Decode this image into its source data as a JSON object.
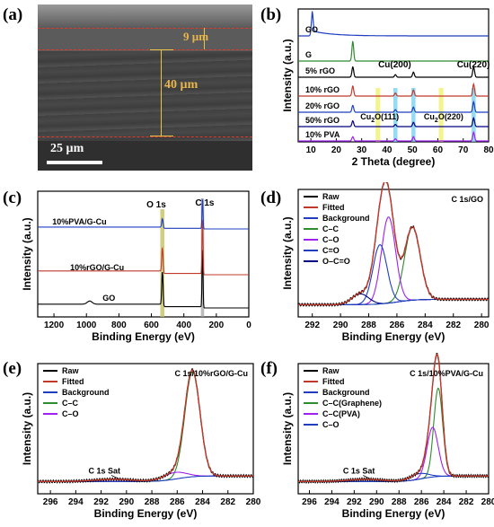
{
  "panels": {
    "a": {
      "label": "(a)",
      "thickness_top": "9 µm",
      "thickness_film": "40 µm",
      "scale_bar": "25 µm"
    },
    "b": {
      "label": "(b)"
    },
    "c": {
      "label": "(c)"
    },
    "d": {
      "label": "(d)"
    },
    "e": {
      "label": "(e)"
    },
    "f": {
      "label": "(f)"
    }
  },
  "colors": {
    "raw": "#000000",
    "fitted": "#c0392b",
    "background": "#1f3fbf",
    "cc": "#2e8b2e",
    "co": "#a020f0",
    "ceo": "#1f3fbf",
    "ocoo": "#000080",
    "xrd_red": "#c0392b",
    "xrd_green": "#2e8b2e",
    "xrd_blue": "#1f3fbf",
    "xrd_navy": "#000080",
    "xrd_purple": "#a020f0",
    "hl_yellow": "#f0f060",
    "hl_cyan": "#66ccee"
  },
  "chart_data": [
    {
      "id": "b",
      "type": "line",
      "xlabel": "2 Theta (degree)",
      "ylabel": "Intensity (a.u.)",
      "xlim": [
        5,
        80
      ],
      "xticks": [
        10,
        20,
        30,
        40,
        50,
        60,
        70,
        80
      ],
      "series": [
        {
          "name": "GO",
          "color": "#1f3fbf",
          "peaks": [
            [
              10.5,
              1.0
            ]
          ]
        },
        {
          "name": "G",
          "color": "#2e8b2e",
          "peaks": [
            [
              26.5,
              1.0
            ]
          ]
        },
        {
          "name": "5% rGO",
          "color": "#000000",
          "peaks": [
            [
              26.5,
              0.6
            ],
            [
              43.3,
              0.15
            ],
            [
              50.4,
              0.3
            ],
            [
              74.1,
              0.6
            ]
          ]
        },
        {
          "name": "10% rGO",
          "color": "#c0392b",
          "peaks": [
            [
              26.5,
              0.5
            ],
            [
              43.3,
              0.15
            ],
            [
              50.4,
              0.3
            ],
            [
              74.1,
              0.6
            ]
          ]
        },
        {
          "name": "20% rGO",
          "color": "#1f3fbf",
          "peaks": [
            [
              26.5,
              0.4
            ],
            [
              43.3,
              0.15
            ],
            [
              50.4,
              0.3
            ],
            [
              74.1,
              0.6
            ]
          ]
        },
        {
          "name": "50% rGO",
          "color": "#000080",
          "peaks": [
            [
              26.5,
              0.4
            ],
            [
              43.3,
              0.15
            ],
            [
              50.4,
              0.3
            ],
            [
              74.1,
              0.6
            ]
          ]
        },
        {
          "name": "10% PVA",
          "color": "#a020f0",
          "peaks": [
            [
              26.5,
              0.3
            ],
            [
              43.3,
              0.15
            ],
            [
              50.4,
              0.3
            ],
            [
              74.1,
              0.6
            ]
          ]
        }
      ],
      "annotations": [
        "Cu(200)",
        "Cu(220)",
        "Cu",
        "2",
        "O(111)",
        "Cu",
        "2",
        "O(220)"
      ]
    },
    {
      "id": "c",
      "type": "line",
      "xlabel": "Binding Energy (eV)",
      "ylabel": "Intensity (a.u.)",
      "xlim": [
        1300,
        0
      ],
      "xticks": [
        1200,
        1000,
        800,
        600,
        400,
        200,
        0
      ],
      "series": [
        {
          "name": "GO",
          "color": "#000000"
        },
        {
          "name": "10%rGO/G-Cu",
          "color": "#c0392b"
        },
        {
          "name": "10%PVA/G-Cu",
          "color": "#1f3fbf"
        }
      ],
      "annotations": [
        "O 1s",
        "C 1s"
      ]
    },
    {
      "id": "d",
      "type": "line",
      "title": "C 1s/GO",
      "xlabel": "Binding Energy (eV)",
      "ylabel": "Intensity (a.u.)",
      "xlim": [
        293,
        279.5
      ],
      "xticks": [
        292,
        290,
        288,
        286,
        284,
        282,
        280
      ],
      "legend": [
        "Raw",
        "Fitted",
        "Background",
        "C–C",
        "C–O",
        "C=O",
        "O–C=O"
      ],
      "components": [
        {
          "name": "C–C",
          "center": 284.9,
          "amp": 0.68,
          "width": 0.55
        },
        {
          "name": "C–O",
          "center": 286.6,
          "amp": 0.8,
          "width": 0.5
        },
        {
          "name": "C=O",
          "center": 287.2,
          "amp": 0.55,
          "width": 0.5
        },
        {
          "name": "O–C=O",
          "center": 288.6,
          "amp": 0.1,
          "width": 0.6
        }
      ]
    },
    {
      "id": "e",
      "type": "line",
      "title": "C 1s/10%rGO/G-Cu",
      "xlabel": "Binding Energy (eV)",
      "ylabel": "Intensity (a.u.)",
      "xlim": [
        297,
        280
      ],
      "xticks": [
        296,
        294,
        292,
        290,
        288,
        286,
        284,
        282,
        280
      ],
      "legend": [
        "Raw",
        "Fitted",
        "Background",
        "C–C",
        "C–O"
      ],
      "annotation": "C 1s Sat",
      "components": [
        {
          "name": "C–C",
          "center": 284.8,
          "amp": 0.95,
          "width": 0.6
        },
        {
          "name": "C–O",
          "center": 286.2,
          "amp": 0.06,
          "width": 0.9
        }
      ]
    },
    {
      "id": "f",
      "type": "line",
      "title": "C 1s/10%PVA/G-Cu",
      "xlabel": "Binding Energy (eV)",
      "ylabel": "Intensity (a.u.)",
      "xlim": [
        297,
        280
      ],
      "xticks": [
        296,
        294,
        292,
        290,
        288,
        286,
        284,
        282,
        280
      ],
      "legend": [
        "Raw",
        "Fitted",
        "Background",
        "C–C(Graphene)",
        "C–C(PVA)",
        "C–O"
      ],
      "annotation": "C 1s Sat",
      "components": [
        {
          "name": "C–C(Graphene)",
          "center": 284.5,
          "amp": 0.8,
          "width": 0.4
        },
        {
          "name": "C–C(PVA)",
          "center": 285.0,
          "amp": 0.45,
          "width": 0.5
        },
        {
          "name": "C–O",
          "center": 286.2,
          "amp": 0.05,
          "width": 0.8
        }
      ]
    }
  ]
}
